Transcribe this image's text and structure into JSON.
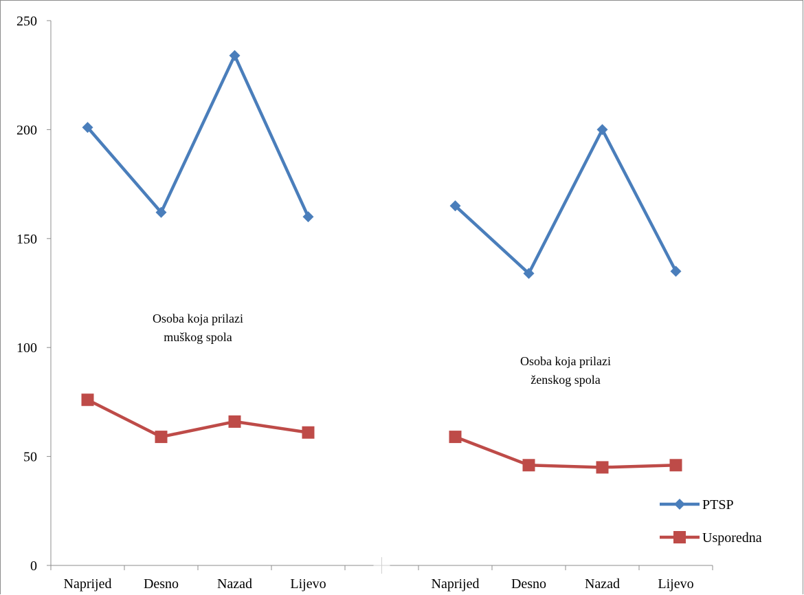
{
  "chart_data": {
    "type": "line",
    "groups": [
      {
        "label_lines": [
          "Osoba koja prilazi",
          "muškog spola"
        ],
        "categories": [
          "Naprijed",
          "Desno",
          "Nazad",
          "Lijevo"
        ]
      },
      {
        "label_lines": [
          "Osoba koja prilazi",
          "ženskog spola"
        ],
        "categories": [
          "Naprijed",
          "Desno",
          "Nazad",
          "Lijevo"
        ]
      }
    ],
    "categories": [
      "Naprijed",
      "Desno",
      "Nazad",
      "Lijevo",
      "",
      "Naprijed",
      "Desno",
      "Nazad",
      "Lijevo"
    ],
    "series": [
      {
        "name": "PTSP",
        "color": "#4a7ebb",
        "marker": "diamond",
        "segments": [
          [
            201,
            162,
            234,
            160
          ],
          [
            165,
            134,
            200,
            135
          ]
        ]
      },
      {
        "name": "Usporedna",
        "color": "#be4b48",
        "marker": "square",
        "segments": [
          [
            76,
            59,
            66,
            61
          ],
          [
            59,
            46,
            45,
            46
          ]
        ]
      }
    ],
    "ylim": [
      0,
      250
    ],
    "yticks": [
      0,
      50,
      100,
      150,
      200,
      250
    ],
    "grid": false,
    "legend_position": "bottom-right"
  }
}
